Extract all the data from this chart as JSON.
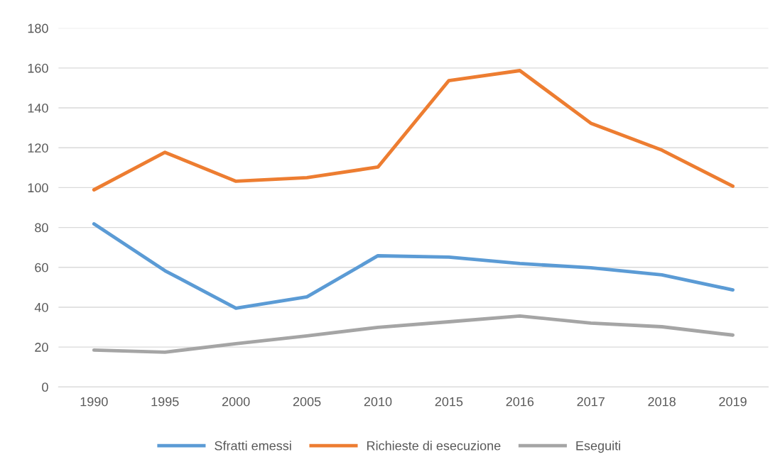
{
  "chart_data": {
    "type": "line",
    "categories": [
      "1990",
      "1995",
      "2000",
      "2005",
      "2010",
      "2015",
      "2016",
      "2017",
      "2018",
      "2019"
    ],
    "series": [
      {
        "name": "Sfratti emessi",
        "color": "#5b9bd5",
        "values": [
          81.8,
          58.3,
          39.5,
          45.2,
          65.8,
          65.1,
          61.9,
          59.8,
          56.2,
          48.7
        ]
      },
      {
        "name": "Richieste di esecuzione",
        "color": "#ed7d31",
        "values": [
          98.9,
          117.7,
          103.2,
          105,
          110.3,
          153.7,
          158.7,
          132.3,
          118.8,
          100.7
        ]
      },
      {
        "name": "Eseguiti",
        "color": "#a5a5a5",
        "values": [
          18.5,
          17.4,
          21.7,
          25.6,
          29.9,
          32.7,
          35.6,
          32,
          30.2,
          26
        ]
      }
    ],
    "ylim": [
      0,
      180
    ],
    "yticks": [
      0,
      20,
      40,
      60,
      80,
      100,
      120,
      140,
      160,
      180
    ],
    "grid": "y",
    "legend": "bottom",
    "marker": "none",
    "line_style": "solid"
  }
}
